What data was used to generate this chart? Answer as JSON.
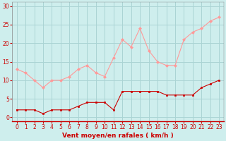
{
  "hours": [
    0,
    1,
    2,
    3,
    4,
    5,
    6,
    7,
    8,
    9,
    10,
    11,
    12,
    13,
    14,
    15,
    16,
    17,
    18,
    19,
    20,
    21,
    22,
    23
  ],
  "vent_moyen": [
    2,
    2,
    2,
    1,
    2,
    2,
    2,
    3,
    4,
    4,
    4,
    2,
    7,
    7,
    7,
    7,
    7,
    6,
    6,
    6,
    6,
    8,
    9,
    10
  ],
  "rafales": [
    13,
    12,
    10,
    8,
    10,
    10,
    11,
    13,
    14,
    12,
    11,
    16,
    21,
    19,
    24,
    18,
    15,
    14,
    14,
    21,
    23,
    24,
    26,
    27
  ],
  "color_moyen": "#cc0000",
  "color_rafales": "#ff9999",
  "bg_color": "#ceeeed",
  "grid_color": "#aad4d4",
  "xlabel": "Vent moyen/en rafales ( km/h )",
  "xlabel_color": "#cc0000",
  "tick_color": "#cc0000",
  "ylim": [
    -1,
    31
  ],
  "yticks": [
    0,
    5,
    10,
    15,
    20,
    25,
    30
  ],
  "xticks": [
    0,
    1,
    2,
    3,
    4,
    5,
    6,
    7,
    8,
    9,
    10,
    11,
    12,
    13,
    14,
    15,
    16,
    17,
    18,
    19,
    20,
    21,
    22,
    23
  ]
}
